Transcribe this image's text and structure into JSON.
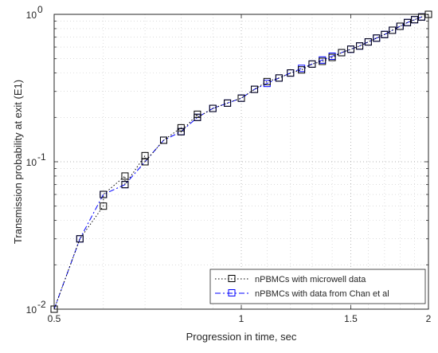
{
  "chart_data": {
    "type": "line",
    "title": "",
    "xlabel": "Progression in time, sec",
    "ylabel": "Transmission probability at exit (E1)",
    "xscale": "log",
    "yscale": "log",
    "xlim": [
      0.5,
      2
    ],
    "ylim": [
      0.01,
      1
    ],
    "grid": true,
    "minor_grid": true,
    "legend_position": "bottom-right",
    "xticks": [
      {
        "value": 0.5,
        "label": "0.5"
      },
      {
        "value": 1,
        "label": "1"
      },
      {
        "value": 1.5,
        "label": "1.5"
      },
      {
        "value": 2,
        "label": "2"
      }
    ],
    "yticks": [
      {
        "value": 0.01,
        "base": "10",
        "exp": "-2"
      },
      {
        "value": 0.1,
        "base": "10",
        "exp": "-1"
      },
      {
        "value": 1,
        "base": "10",
        "exp": "0"
      }
    ],
    "series": [
      {
        "name": "nPBMCs with microwell data",
        "color": "#000000",
        "line_style": "dotted",
        "marker": "square",
        "x": [
          0.5,
          0.55,
          0.6,
          0.6,
          0.65,
          0.65,
          0.7,
          0.7,
          0.75,
          0.8,
          0.8,
          0.85,
          0.85,
          0.9,
          0.95,
          1.0,
          1.05,
          1.1,
          1.15,
          1.2,
          1.25,
          1.3,
          1.35,
          1.4,
          1.45,
          1.5,
          1.55,
          1.6,
          1.65,
          1.7,
          1.75,
          1.8,
          1.85,
          1.9,
          1.95,
          2.0
        ],
        "y": [
          0.01,
          0.03,
          0.05,
          0.06,
          0.08,
          0.07,
          0.11,
          0.1,
          0.14,
          0.17,
          0.16,
          0.21,
          0.2,
          0.23,
          0.25,
          0.27,
          0.31,
          0.35,
          0.37,
          0.4,
          0.42,
          0.46,
          0.48,
          0.51,
          0.55,
          0.58,
          0.61,
          0.65,
          0.69,
          0.73,
          0.78,
          0.83,
          0.88,
          0.92,
          0.96,
          1.0
        ]
      },
      {
        "name": "nPBMCs with data from Chan et al",
        "color": "#0000ff",
        "line_style": "dashdot",
        "marker": "square",
        "x": [
          0.5,
          0.55,
          0.6,
          0.65,
          0.7,
          0.75,
          0.8,
          0.85,
          0.9,
          0.95,
          1.0,
          1.05,
          1.1,
          1.15,
          1.2,
          1.25,
          1.3,
          1.35,
          1.4,
          1.45,
          1.5,
          1.55,
          1.6,
          1.65,
          1.7,
          1.75,
          1.8,
          1.85,
          1.9,
          1.95,
          2.0
        ],
        "y": [
          0.01,
          0.03,
          0.06,
          0.07,
          0.1,
          0.14,
          0.16,
          0.2,
          0.23,
          0.25,
          0.27,
          0.31,
          0.34,
          0.37,
          0.4,
          0.43,
          0.46,
          0.49,
          0.52,
          0.55,
          0.58,
          0.61,
          0.65,
          0.69,
          0.73,
          0.78,
          0.83,
          0.88,
          0.92,
          0.96,
          1.0
        ]
      }
    ]
  }
}
